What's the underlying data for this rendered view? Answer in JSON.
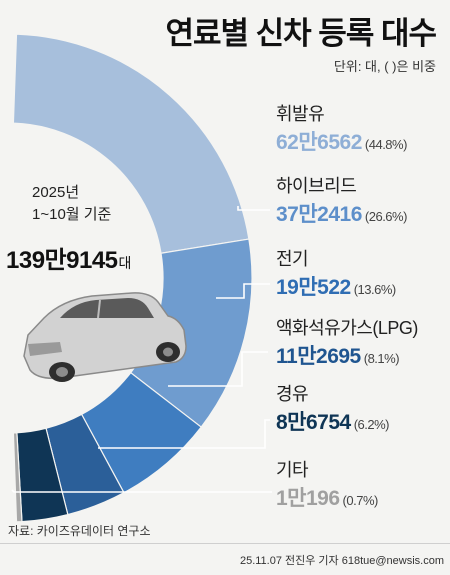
{
  "title": "연료별 신차 등록 대수",
  "unit_note": "단위: 대, ( )은 비중",
  "center": {
    "year": "2025년",
    "basis": "1~10월 기준",
    "total": "139만9145",
    "total_unit": "대"
  },
  "chart_data": {
    "type": "pie",
    "title": "연료별 신차 등록 대수",
    "total": 1399145,
    "slices": [
      {
        "name": "휘발유",
        "value": 626562,
        "value_label": "62만6562",
        "share": 44.8,
        "share_label": "(44.8%)",
        "color": "#a7bfdc",
        "text_color": "#8eaed6"
      },
      {
        "name": "하이브리드",
        "value": 372416,
        "value_label": "37만2416",
        "share": 26.6,
        "share_label": "(26.6%)",
        "color": "#6f9ccf",
        "text_color": "#5d8fca"
      },
      {
        "name": "전기",
        "value": 190522,
        "value_label": "19만522",
        "share": 13.6,
        "share_label": "(13.6%)",
        "color": "#3f7dc0",
        "text_color": "#2f6db3"
      },
      {
        "name": "액화석유가스(LPG)",
        "value": 112695,
        "value_label": "11만2695",
        "share": 8.1,
        "share_label": "(8.1%)",
        "color": "#2b5f99",
        "text_color": "#1f5590"
      },
      {
        "name": "경유",
        "value": 86754,
        "value_label": "8만6754",
        "share": 6.2,
        "share_label": "(6.2%)",
        "color": "#0f3555",
        "text_color": "#0f3555"
      },
      {
        "name": "기타",
        "value": 10196,
        "value_label": "1만196",
        "share": 0.7,
        "share_label": "(0.7%)",
        "color": "#a8a8a8",
        "text_color": "#a0a0a0"
      }
    ]
  },
  "source": "자료: 카이즈유데이터 연구소",
  "credit": "25.11.07 전진우 기자 618tue@newsis.com"
}
